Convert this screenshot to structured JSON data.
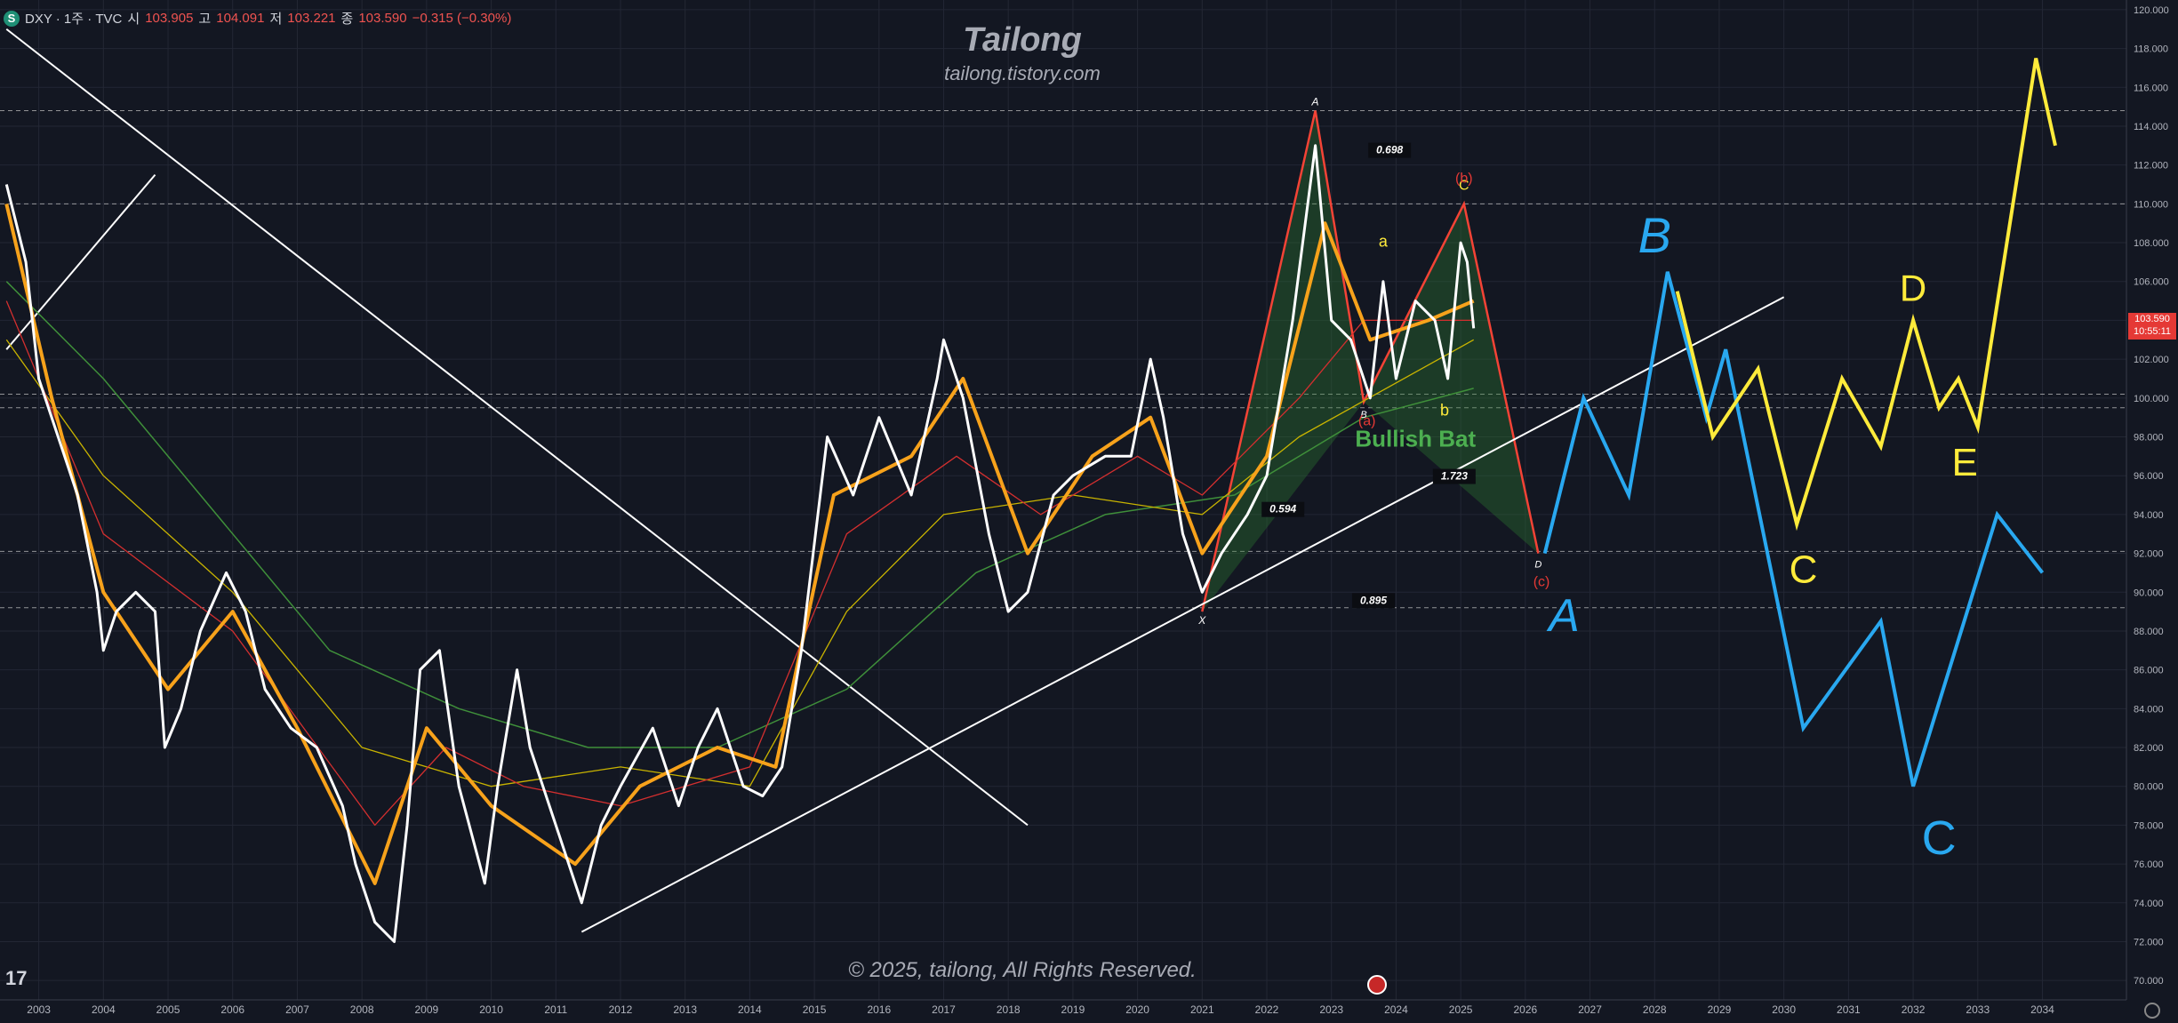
{
  "legend": {
    "symbol_icon": "S",
    "symbol": "DXY · 1주 · TVC",
    "open_label": "시",
    "open": "103.905",
    "high_label": "고",
    "high": "104.091",
    "low_label": "저",
    "low": "103.221",
    "close_label": "종",
    "close": "103.590",
    "change": "−0.315 (−0.30%)"
  },
  "brand": {
    "title": "Tailong",
    "subtitle": "tailong.tistory.com"
  },
  "copyright": "© 2025, tailong, All Rights Reserved.",
  "tv_logo": "17",
  "price_tag": {
    "price": "103.590",
    "countdown": "10:55:11"
  },
  "colors": {
    "background": "#131722",
    "price": "#ffffff",
    "ema_fast": "#f7a21b",
    "ma_red": "#d32f2f",
    "ma_yellow": "#c9b400",
    "ma_green": "#3f8f3a",
    "pattern_fill": "#2e7d32",
    "pattern_edge": "#f44336",
    "forecast_blue": "#29a8f0",
    "forecast_yellow": "#ffeb3b",
    "trend": "#ffffff"
  },
  "chart_data": {
    "type": "line",
    "title": "DXY · 1주 · TVC",
    "x_axis": {
      "ticks": [
        "2003",
        "2004",
        "2005",
        "2006",
        "2007",
        "2008",
        "2009",
        "2010",
        "2011",
        "2012",
        "2013",
        "2014",
        "2015",
        "2016",
        "2017",
        "2018",
        "2019",
        "2020",
        "2021",
        "2022",
        "2023",
        "2024",
        "2025",
        "2026",
        "2027",
        "2028",
        "2029",
        "2030",
        "2031",
        "2032",
        "2033",
        "2034"
      ]
    },
    "y_axis": {
      "ticks": [
        "70.000",
        "72.000",
        "74.000",
        "76.000",
        "78.000",
        "80.000",
        "82.000",
        "84.000",
        "86.000",
        "88.000",
        "90.000",
        "92.000",
        "94.000",
        "96.000",
        "98.000",
        "100.000",
        "102.000",
        "104.000",
        "106.000",
        "108.000",
        "110.000",
        "112.000",
        "114.000",
        "116.000",
        "118.000",
        "120.000"
      ],
      "ylim": [
        69,
        120.5
      ],
      "xlim": [
        2002.4,
        2035.3
      ]
    },
    "price_series": {
      "name": "DXY",
      "points": [
        [
          2002.5,
          111
        ],
        [
          2002.8,
          107
        ],
        [
          2003.0,
          101
        ],
        [
          2003.3,
          98
        ],
        [
          2003.6,
          95
        ],
        [
          2003.9,
          90
        ],
        [
          2004.0,
          87
        ],
        [
          2004.2,
          89
        ],
        [
          2004.5,
          90
        ],
        [
          2004.8,
          89
        ],
        [
          2004.95,
          82
        ],
        [
          2005.2,
          84
        ],
        [
          2005.5,
          88
        ],
        [
          2005.9,
          91
        ],
        [
          2006.2,
          89
        ],
        [
          2006.5,
          85
        ],
        [
          2006.9,
          83
        ],
        [
          2007.3,
          82
        ],
        [
          2007.7,
          79
        ],
        [
          2007.9,
          76
        ],
        [
          2008.2,
          73
        ],
        [
          2008.5,
          72
        ],
        [
          2008.7,
          78
        ],
        [
          2008.9,
          86
        ],
        [
          2009.2,
          87
        ],
        [
          2009.5,
          80
        ],
        [
          2009.9,
          75
        ],
        [
          2010.1,
          80
        ],
        [
          2010.4,
          86
        ],
        [
          2010.6,
          82
        ],
        [
          2010.9,
          79
        ],
        [
          2011.1,
          77
        ],
        [
          2011.4,
          74
        ],
        [
          2011.7,
          78
        ],
        [
          2012.0,
          80
        ],
        [
          2012.5,
          83
        ],
        [
          2012.9,
          79
        ],
        [
          2013.2,
          82
        ],
        [
          2013.5,
          84
        ],
        [
          2013.9,
          80
        ],
        [
          2014.2,
          79.5
        ],
        [
          2014.5,
          81
        ],
        [
          2014.8,
          87
        ],
        [
          2015.2,
          98
        ],
        [
          2015.6,
          95
        ],
        [
          2016.0,
          99
        ],
        [
          2016.5,
          95
        ],
        [
          2016.9,
          101
        ],
        [
          2017.0,
          103
        ],
        [
          2017.3,
          100
        ],
        [
          2017.7,
          93
        ],
        [
          2018.0,
          89
        ],
        [
          2018.3,
          90
        ],
        [
          2018.7,
          95
        ],
        [
          2019.0,
          96
        ],
        [
          2019.5,
          97
        ],
        [
          2019.9,
          97
        ],
        [
          2020.2,
          102
        ],
        [
          2020.4,
          99
        ],
        [
          2020.7,
          93
        ],
        [
          2021.0,
          90
        ],
        [
          2021.3,
          92
        ],
        [
          2021.7,
          94
        ],
        [
          2022.0,
          96
        ],
        [
          2022.4,
          104
        ],
        [
          2022.75,
          113
        ],
        [
          2023.0,
          104
        ],
        [
          2023.3,
          103
        ],
        [
          2023.6,
          100
        ],
        [
          2023.8,
          106
        ],
        [
          2024.0,
          101
        ],
        [
          2024.3,
          105
        ],
        [
          2024.6,
          104
        ],
        [
          2024.8,
          101
        ],
        [
          2025.0,
          108
        ],
        [
          2025.1,
          107
        ],
        [
          2025.2,
          103.59
        ]
      ]
    },
    "ema_fast": {
      "name": "EMA",
      "points": [
        [
          2002.5,
          110
        ],
        [
          2003.2,
          100
        ],
        [
          2004.0,
          90
        ],
        [
          2005.0,
          85
        ],
        [
          2006.0,
          89
        ],
        [
          2007.0,
          83
        ],
        [
          2008.2,
          75
        ],
        [
          2009.0,
          83
        ],
        [
          2010.0,
          79
        ],
        [
          2011.3,
          76
        ],
        [
          2012.3,
          80
        ],
        [
          2013.5,
          82
        ],
        [
          2014.4,
          81
        ],
        [
          2015.3,
          95
        ],
        [
          2016.5,
          97
        ],
        [
          2017.3,
          101
        ],
        [
          2018.3,
          92
        ],
        [
          2019.3,
          97
        ],
        [
          2020.2,
          99
        ],
        [
          2021.0,
          92
        ],
        [
          2022.0,
          97
        ],
        [
          2022.9,
          109
        ],
        [
          2023.6,
          103
        ],
        [
          2024.5,
          104
        ],
        [
          2025.2,
          105
        ]
      ]
    },
    "ma_red": {
      "name": "MA",
      "points": [
        [
          2002.5,
          105
        ],
        [
          2004.0,
          93
        ],
        [
          2006.0,
          88
        ],
        [
          2008.2,
          78
        ],
        [
          2009.3,
          82
        ],
        [
          2010.5,
          80
        ],
        [
          2012.0,
          79
        ],
        [
          2014.0,
          81
        ],
        [
          2015.5,
          93
        ],
        [
          2017.2,
          97
        ],
        [
          2018.5,
          94
        ],
        [
          2020.0,
          97
        ],
        [
          2021.0,
          95
        ],
        [
          2022.5,
          100
        ],
        [
          2023.5,
          104
        ],
        [
          2025.2,
          104
        ]
      ]
    },
    "ma_yellow": {
      "name": "MA",
      "points": [
        [
          2002.5,
          103
        ],
        [
          2004.0,
          96
        ],
        [
          2006.0,
          90
        ],
        [
          2008.0,
          82
        ],
        [
          2010.0,
          80
        ],
        [
          2012.0,
          81
        ],
        [
          2014.0,
          80
        ],
        [
          2015.5,
          89
        ],
        [
          2017.0,
          94
        ],
        [
          2019.0,
          95
        ],
        [
          2021.0,
          94
        ],
        [
          2022.5,
          98
        ],
        [
          2025.2,
          103
        ]
      ]
    },
    "ma_green": {
      "name": "MA",
      "points": [
        [
          2002.5,
          106
        ],
        [
          2004.0,
          101
        ],
        [
          2005.5,
          95
        ],
        [
          2007.5,
          87
        ],
        [
          2009.5,
          84
        ],
        [
          2011.5,
          82
        ],
        [
          2013.5,
          82
        ],
        [
          2015.5,
          85
        ],
        [
          2017.5,
          91
        ],
        [
          2019.5,
          94
        ],
        [
          2021.5,
          95
        ],
        [
          2023.5,
          99
        ],
        [
          2025.2,
          100.5
        ]
      ]
    },
    "harmonic": {
      "name": "Bullish Bat",
      "X": [
        2021.0,
        89
      ],
      "A": [
        2022.75,
        114.8
      ],
      "B": [
        2023.5,
        99.8
      ],
      "C": [
        2025.05,
        110
      ],
      "D": [
        2026.2,
        92
      ],
      "ratios": [
        "0.698",
        "0.594",
        "1.723",
        "0.895"
      ]
    },
    "forecast_blue": {
      "points": [
        [
          2026.3,
          92
        ],
        [
          2026.9,
          100
        ],
        [
          2027.6,
          95
        ],
        [
          2028.2,
          106.5
        ],
        [
          2028.8,
          99
        ],
        [
          2029.1,
          102.5
        ],
        [
          2030.3,
          83
        ],
        [
          2031.5,
          88.5
        ],
        [
          2032.0,
          80
        ],
        [
          2033.3,
          94
        ],
        [
          2034.0,
          91
        ]
      ],
      "labels": [
        "A",
        "B",
        "C"
      ]
    },
    "forecast_yellow": {
      "points": [
        [
          2028.35,
          105.5
        ],
        [
          2028.9,
          98
        ],
        [
          2029.6,
          101.5
        ],
        [
          2030.2,
          93.5
        ],
        [
          2030.9,
          101
        ],
        [
          2031.5,
          97.5
        ],
        [
          2032.0,
          104
        ],
        [
          2032.4,
          99.5
        ],
        [
          2032.7,
          101
        ],
        [
          2033.0,
          98.5
        ],
        [
          2033.9,
          117.5
        ],
        [
          2034.2,
          113
        ]
      ],
      "labels": [
        "C",
        "D",
        "E"
      ]
    },
    "trendlines": [
      [
        [
          2002.5,
          119
        ],
        [
          2018.3,
          78
        ]
      ],
      [
        [
          2011.4,
          72.5
        ],
        [
          2030.0,
          105.2
        ]
      ],
      [
        [
          2002.5,
          102.5
        ],
        [
          2004.8,
          111.5
        ]
      ]
    ],
    "h_levels": [
      114.8,
      110,
      100.2,
      99.5,
      92.1,
      89.2
    ],
    "annotations": [
      "A",
      "B",
      "C",
      "D",
      "X",
      "a",
      "b",
      "(a)",
      "(b)",
      "(c)",
      "Bullish Bat",
      "0.698",
      "0.594",
      "1.723",
      "0.895"
    ],
    "handwritten": [
      "A",
      "B",
      "C",
      "C",
      "D",
      "E"
    ]
  }
}
